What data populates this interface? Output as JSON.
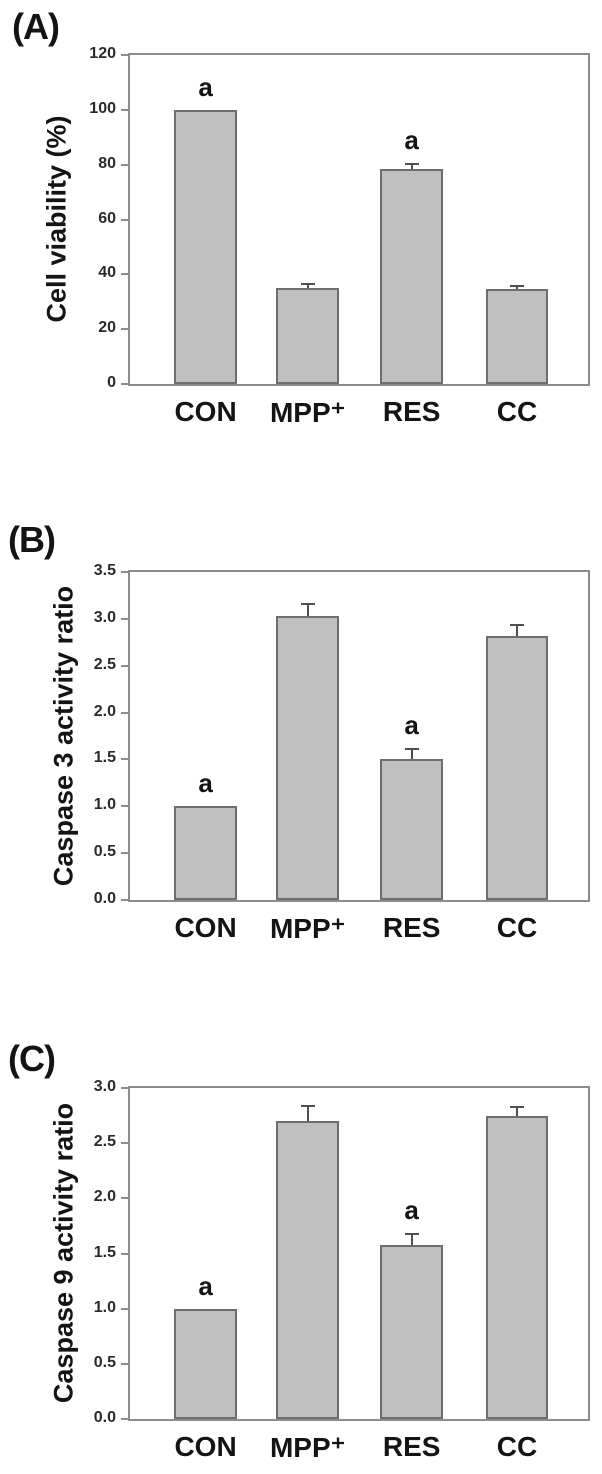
{
  "styles": {
    "bar_fill": "#c0c0c0",
    "bar_border": "#6d6d6d",
    "frame_color": "#8d8d8d",
    "error_bar_color": "#4f4f4f",
    "text_color": "#141414",
    "background": "#ffffff"
  },
  "chart_data": [
    {
      "type": "bar",
      "panel_label": "(A)",
      "title": "",
      "xlabel": "",
      "ylabel": "Cell viability (%)",
      "categories": [
        "CON",
        "MPP⁺",
        "RES",
        "CC"
      ],
      "values": [
        100,
        35,
        78.5,
        34.5
      ],
      "errors_upper": [
        0,
        1.8,
        2.2,
        1.5
      ],
      "sig_letters": [
        "a",
        "",
        "a",
        ""
      ],
      "ylim": [
        0,
        120
      ],
      "ytick_labels": [
        "0",
        "20",
        "40",
        "60",
        "80",
        "100",
        "120"
      ],
      "grid": false,
      "legend": "none"
    },
    {
      "type": "bar",
      "panel_label": "(B)",
      "title": "",
      "xlabel": "",
      "ylabel": "Caspase 3 activity ratio",
      "categories": [
        "CON",
        "MPP⁺",
        "RES",
        "CC"
      ],
      "values": [
        1.0,
        3.03,
        1.5,
        2.82
      ],
      "errors_upper": [
        0,
        0.14,
        0.12,
        0.12
      ],
      "sig_letters": [
        "a",
        "",
        "a",
        ""
      ],
      "ylim": [
        0,
        3.5
      ],
      "ytick_labels": [
        "0.0",
        "0.5",
        "1.0",
        "1.5",
        "2.0",
        "2.5",
        "3.0",
        "3.5"
      ],
      "grid": false,
      "legend": "none"
    },
    {
      "type": "bar",
      "panel_label": "(C)",
      "title": "",
      "xlabel": "",
      "ylabel": "Caspase 9 activity ratio",
      "categories": [
        "CON",
        "MPP⁺",
        "RES",
        "CC"
      ],
      "values": [
        1.0,
        2.7,
        1.58,
        2.75
      ],
      "errors_upper": [
        0,
        0.15,
        0.11,
        0.09
      ],
      "sig_letters": [
        "a",
        "",
        "a",
        ""
      ],
      "ylim": [
        0,
        3.0
      ],
      "ytick_labels": [
        "0.0",
        "0.5",
        "1.0",
        "1.5",
        "2.0",
        "2.5",
        "3.0"
      ],
      "grid": false,
      "legend": "none"
    }
  ]
}
